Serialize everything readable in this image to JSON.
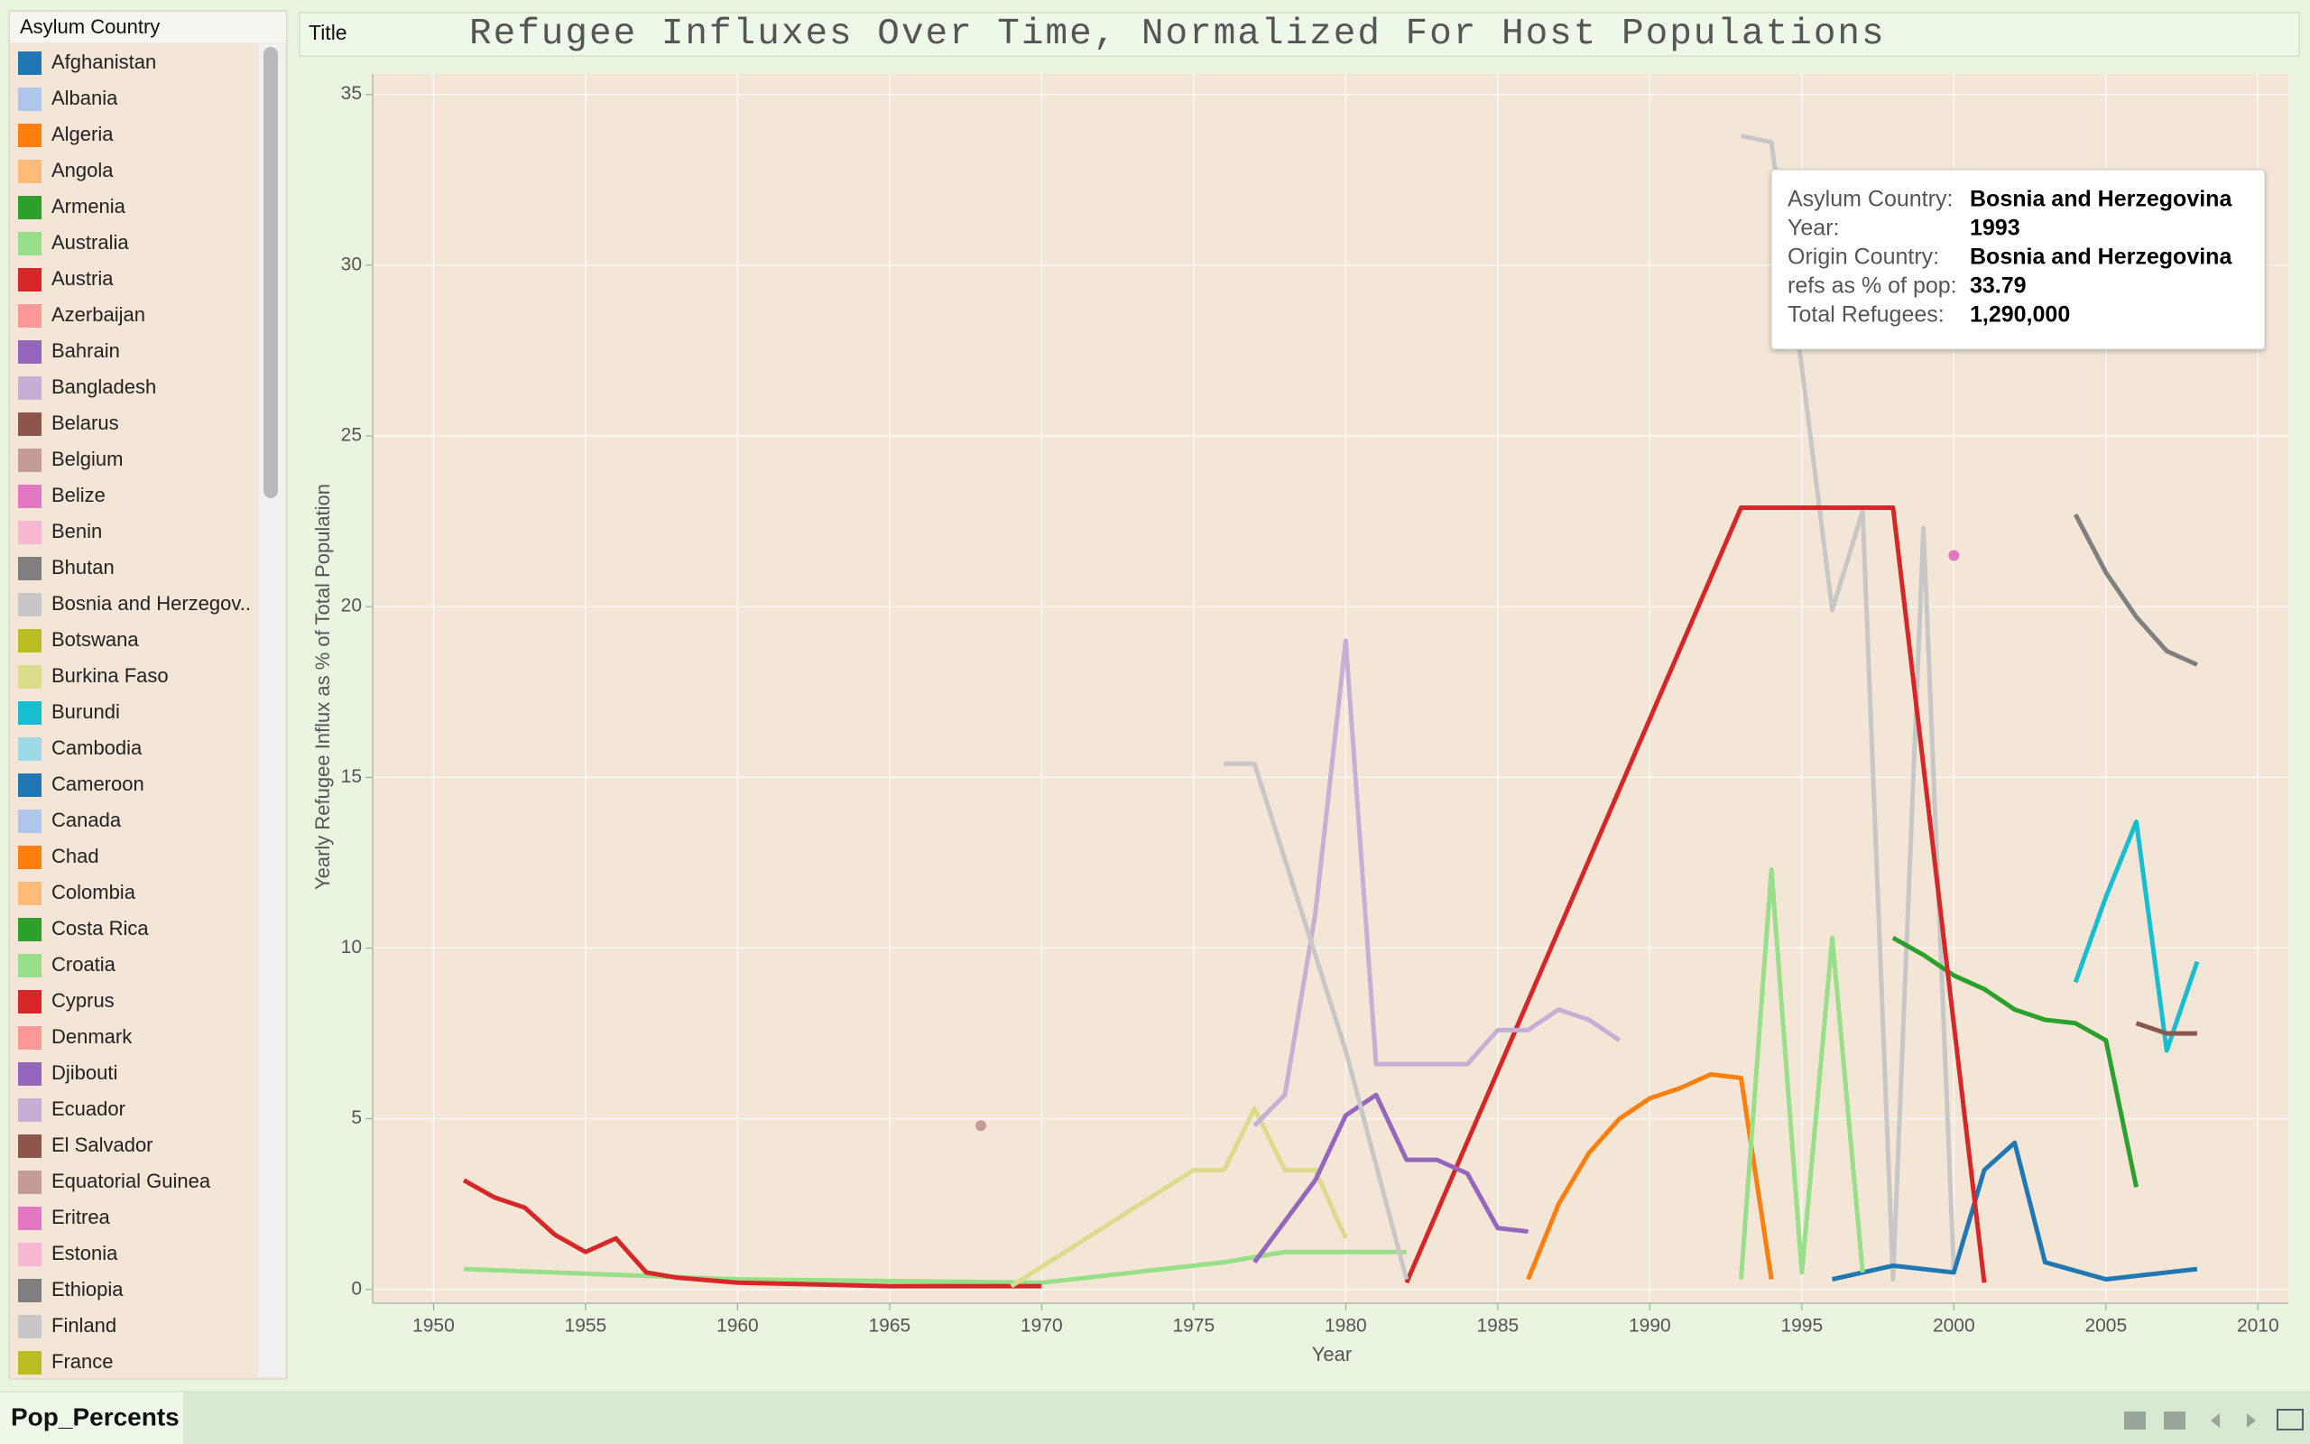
{
  "title_label": "Title",
  "sheet_tab": "Pop_Percents",
  "tooltip": {
    "rows": [
      {
        "label": "Asylum Country:",
        "value": "Bosnia and Herzegovina"
      },
      {
        "label": "Year:",
        "value": 1993
      },
      {
        "label": "Origin Country:",
        "value": "Bosnia and Herzegovina"
      },
      {
        "label": "refs as % of pop:",
        "value": 33.79
      },
      {
        "label": "Total Refugees:",
        "value": "1,290,000"
      }
    ]
  },
  "chart_data": {
    "type": "line",
    "title": "Refugee Influxes Over Time, Normalized For Host Populations",
    "x_label": "Year",
    "y_label": "Yearly Refugee Influx as % of Total Population",
    "legend_title": "Asylum Country",
    "xlim": [
      1948,
      2011
    ],
    "ylim": [
      -0.4,
      35.6
    ],
    "xticks": [
      1950,
      1955,
      1960,
      1965,
      1970,
      1975,
      1980,
      1985,
      1990,
      1995,
      2000,
      2005,
      2010
    ],
    "yticks": [
      0,
      5,
      10,
      15,
      20,
      25,
      30,
      35
    ],
    "grid": true,
    "series": [
      {
        "name": "Afghanistan",
        "color": "#1f77b4"
      },
      {
        "name": "Albania",
        "color": "#aec7e8"
      },
      {
        "name": "Algeria",
        "color": "#ff7f0e"
      },
      {
        "name": "Angola",
        "color": "#ffbb78"
      },
      {
        "name": "Armenia",
        "color": "#2ca02c"
      },
      {
        "name": "Australia",
        "color": "#98df8a",
        "x": [
          1951,
          1960,
          1970,
          1976,
          1978,
          1982
        ],
        "values": [
          0.6,
          0.3,
          0.2,
          0.8,
          1.1,
          1.1
        ]
      },
      {
        "name": "Austria",
        "color": "#d62728",
        "x": [
          1951,
          1952,
          1953,
          1954,
          1955,
          1956,
          1957,
          1958,
          1960,
          1965,
          1970
        ],
        "values": [
          3.2,
          2.7,
          2.4,
          1.6,
          1.1,
          1.5,
          0.5,
          0.35,
          0.2,
          0.1,
          0.1
        ]
      },
      {
        "name": "Azerbaijan",
        "color": "#ff9896"
      },
      {
        "name": "Bahrain",
        "color": "#9467bd"
      },
      {
        "name": "Bangladesh",
        "color": "#c5b0d5"
      },
      {
        "name": "Belarus",
        "color": "#8c564b"
      },
      {
        "name": "Belgium",
        "color": "#c49c94",
        "x": [
          1968
        ],
        "values": [
          4.8
        ]
      },
      {
        "name": "Belize",
        "color": "#e377c2",
        "x": [
          2000
        ],
        "values": [
          21.5
        ]
      },
      {
        "name": "Benin",
        "color": "#f7b6d2"
      },
      {
        "name": "Bhutan",
        "color": "#7f7f7f"
      },
      {
        "name": "Bosnia and Herzegov..",
        "color": "#c7c7c7",
        "x": [
          1993,
          1994,
          1995,
          1996,
          1997,
          1998,
          1999,
          2000
        ],
        "values": [
          33.79,
          33.6,
          27,
          19.9,
          22.8,
          0.3,
          22.3,
          0.5
        ]
      },
      {
        "name": "Botswana",
        "color": "#bcbd22"
      },
      {
        "name": "Burkina Faso",
        "color": "#dbdb8d",
        "x": [
          1969,
          1975,
          1976,
          1977,
          1978,
          1979,
          1980
        ],
        "values": [
          0.1,
          3.5,
          3.5,
          5.3,
          3.5,
          3.5,
          1.5
        ]
      },
      {
        "name": "Burundi",
        "color": "#17becf",
        "x": [
          2004,
          2005,
          2006,
          2007,
          2008
        ],
        "values": [
          9,
          11.5,
          13.7,
          7,
          9.6
        ]
      },
      {
        "name": "Cambodia",
        "color": "#9edae5"
      },
      {
        "name": "Cameroon",
        "color": "#1f77b4",
        "x": [
          1996,
          1998,
          2000,
          2001,
          2002,
          2003,
          2005,
          2008
        ],
        "values": [
          0.3,
          0.7,
          0.5,
          3.5,
          4.3,
          0.8,
          0.3,
          0.6
        ]
      },
      {
        "name": "Canada",
        "color": "#aec7e8"
      },
      {
        "name": "Chad",
        "color": "#ff7f0e",
        "x": [
          1986,
          1987,
          1988,
          1989,
          1990,
          1991,
          1992,
          1993,
          1994
        ],
        "values": [
          0.3,
          2.5,
          4,
          5,
          5.6,
          5.9,
          6.3,
          6.2,
          0.3
        ]
      },
      {
        "name": "Colombia",
        "color": "#ffbb78"
      },
      {
        "name": "Costa Rica",
        "color": "#2ca02c",
        "x": [
          1998,
          1999,
          2000,
          2001,
          2002,
          2003,
          2004,
          2005,
          2006
        ],
        "values": [
          10.3,
          9.8,
          9.2,
          8.8,
          8.2,
          7.9,
          7.8,
          7.3,
          3
        ]
      },
      {
        "name": "Croatia",
        "color": "#98df8a",
        "x": [
          1993,
          1994,
          1995,
          1996,
          1997
        ],
        "values": [
          0.3,
          12.3,
          0.5,
          10.3,
          0.5
        ]
      },
      {
        "name": "Cyprus",
        "color": "#d62728",
        "x": [
          1982,
          1993,
          1998,
          2001
        ],
        "values": [
          0.2,
          22.9,
          22.9,
          0.2
        ]
      },
      {
        "name": "Denmark",
        "color": "#ff9896"
      },
      {
        "name": "Djibouti",
        "color": "#9467bd",
        "x": [
          1977,
          1979,
          1980,
          1981,
          1982,
          1983,
          1984,
          1985,
          1986
        ],
        "values": [
          0.8,
          3.2,
          5.1,
          5.7,
          3.8,
          3.8,
          3.4,
          1.8,
          1.7
        ]
      },
      {
        "name": "Ecuador",
        "color": "#c5b0d5",
        "x": [
          1977,
          1978,
          1979,
          1980,
          1981,
          1984,
          1985,
          1986,
          1987,
          1988,
          1989
        ],
        "values": [
          4.8,
          5.7,
          11,
          19,
          6.6,
          6.6,
          7.6,
          7.6,
          8.2,
          7.9,
          7.3
        ]
      },
      {
        "name": "El Salvador",
        "color": "#8c564b",
        "x": [
          2006,
          2007,
          2008
        ],
        "values": [
          7.8,
          7.5,
          7.5
        ]
      },
      {
        "name": "Equatorial Guinea",
        "color": "#c49c94"
      },
      {
        "name": "Eritrea",
        "color": "#e377c2"
      },
      {
        "name": "Estonia",
        "color": "#f7b6d2"
      },
      {
        "name": "Ethiopia",
        "color": "#7f7f7f",
        "x": [
          2004,
          2005,
          2006,
          2007,
          2008
        ],
        "values": [
          22.7,
          21,
          19.7,
          18.7,
          18.3
        ]
      },
      {
        "name": "Finland",
        "color": "#c7c7c7",
        "x": [
          1976,
          1977,
          1980,
          1982
        ],
        "values": [
          15.4,
          15.4,
          7,
          0.3
        ]
      },
      {
        "name": "France",
        "color": "#bcbd22"
      }
    ]
  }
}
